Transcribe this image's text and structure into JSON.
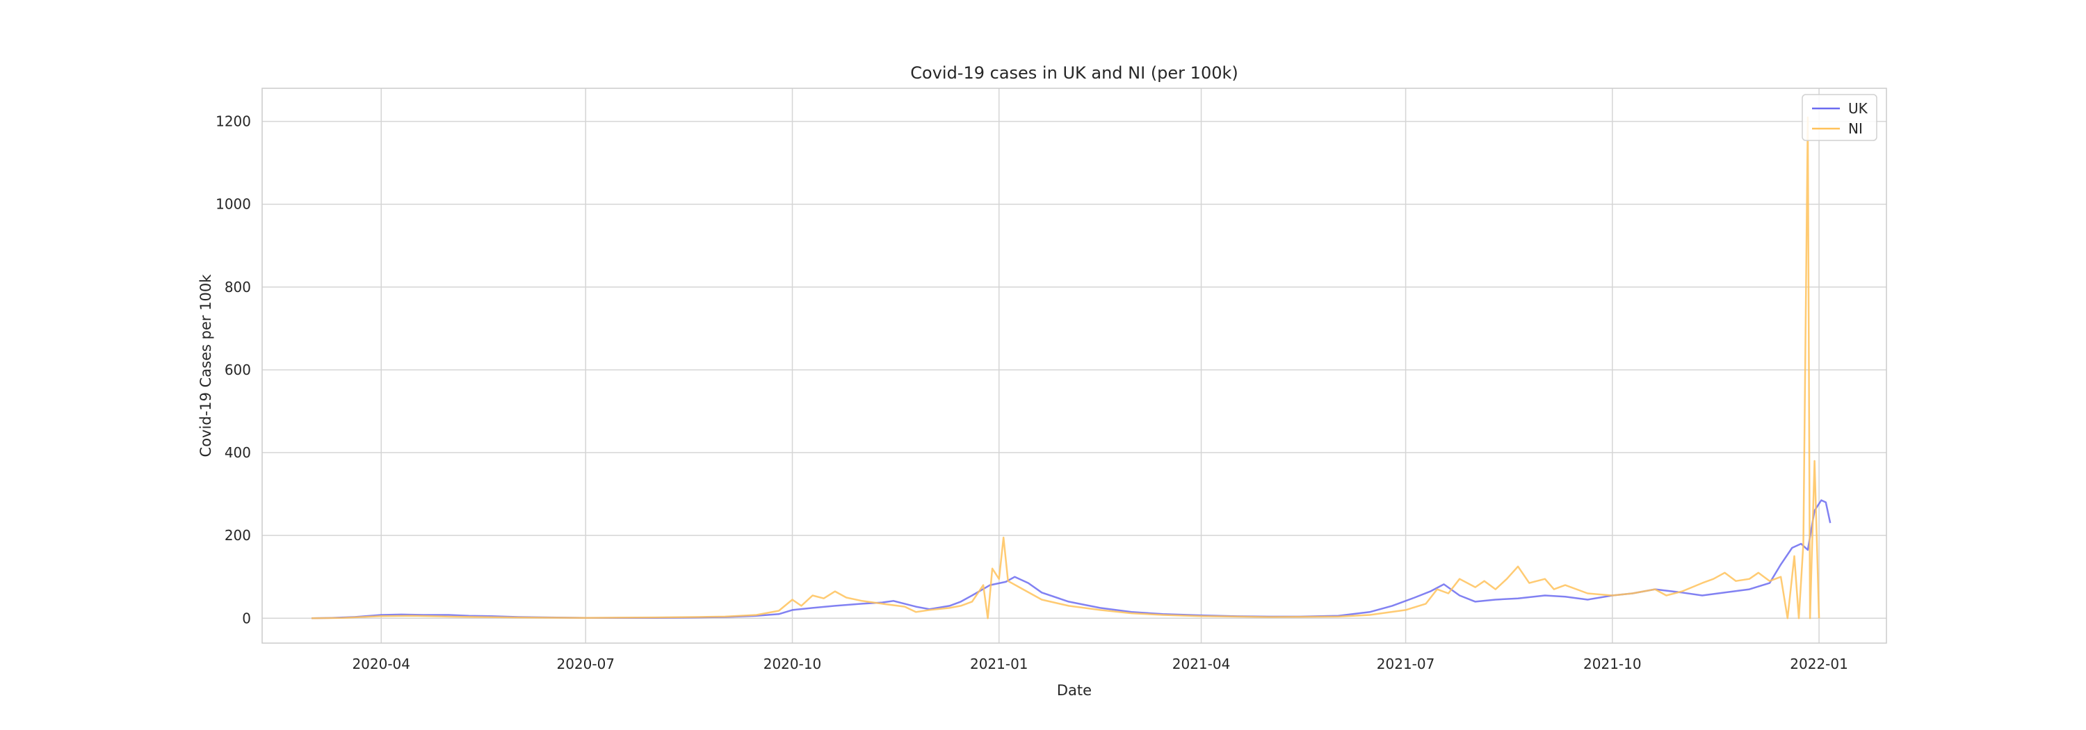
{
  "chart_data": {
    "type": "line",
    "title": "Covid-19 cases in UK and NI (per 100k)",
    "xlabel": "Date",
    "ylabel": "Covid-19 Cases per 100k",
    "xlim": [
      "2020-02-08",
      "2022-01-31"
    ],
    "ylim": [
      -60,
      1280
    ],
    "x_ticks": [
      "2020-04",
      "2020-07",
      "2020-10",
      "2021-01",
      "2021-04",
      "2021-07",
      "2021-10",
      "2022-01"
    ],
    "y_ticks": [
      0,
      200,
      400,
      600,
      800,
      1000,
      1200
    ],
    "grid": true,
    "legend_position": "top-right",
    "series": [
      {
        "name": "UK",
        "color": "#6b6bf0",
        "points": [
          [
            "2020-03-01",
            0
          ],
          [
            "2020-03-10",
            1
          ],
          [
            "2020-03-20",
            3
          ],
          [
            "2020-04-01",
            8
          ],
          [
            "2020-04-10",
            9
          ],
          [
            "2020-04-20",
            8
          ],
          [
            "2020-05-01",
            8
          ],
          [
            "2020-05-10",
            6
          ],
          [
            "2020-05-20",
            5
          ],
          [
            "2020-06-01",
            3
          ],
          [
            "2020-06-15",
            2
          ],
          [
            "2020-07-01",
            1
          ],
          [
            "2020-08-01",
            1
          ],
          [
            "2020-08-20",
            2
          ],
          [
            "2020-09-01",
            3
          ],
          [
            "2020-09-15",
            6
          ],
          [
            "2020-09-25",
            10
          ],
          [
            "2020-10-01",
            20
          ],
          [
            "2020-10-10",
            25
          ],
          [
            "2020-10-20",
            30
          ],
          [
            "2020-11-01",
            35
          ],
          [
            "2020-11-10",
            38
          ],
          [
            "2020-11-15",
            42
          ],
          [
            "2020-11-25",
            28
          ],
          [
            "2020-12-01",
            22
          ],
          [
            "2020-12-10",
            30
          ],
          [
            "2020-12-15",
            40
          ],
          [
            "2020-12-20",
            55
          ],
          [
            "2020-12-28",
            80
          ],
          [
            "2021-01-04",
            88
          ],
          [
            "2021-01-08",
            100
          ],
          [
            "2021-01-14",
            85
          ],
          [
            "2021-01-20",
            62
          ],
          [
            "2021-02-01",
            40
          ],
          [
            "2021-02-15",
            25
          ],
          [
            "2021-03-01",
            15
          ],
          [
            "2021-03-15",
            10
          ],
          [
            "2021-04-01",
            7
          ],
          [
            "2021-04-15",
            5
          ],
          [
            "2021-05-01",
            4
          ],
          [
            "2021-05-15",
            4
          ],
          [
            "2021-06-01",
            6
          ],
          [
            "2021-06-15",
            15
          ],
          [
            "2021-06-25",
            30
          ],
          [
            "2021-07-05",
            50
          ],
          [
            "2021-07-12",
            65
          ],
          [
            "2021-07-18",
            82
          ],
          [
            "2021-07-25",
            55
          ],
          [
            "2021-08-01",
            40
          ],
          [
            "2021-08-10",
            45
          ],
          [
            "2021-08-20",
            48
          ],
          [
            "2021-09-01",
            55
          ],
          [
            "2021-09-10",
            52
          ],
          [
            "2021-09-20",
            45
          ],
          [
            "2021-10-01",
            55
          ],
          [
            "2021-10-10",
            60
          ],
          [
            "2021-10-20",
            70
          ],
          [
            "2021-11-01",
            62
          ],
          [
            "2021-11-10",
            55
          ],
          [
            "2021-11-20",
            62
          ],
          [
            "2021-12-01",
            70
          ],
          [
            "2021-12-10",
            85
          ],
          [
            "2021-12-15",
            130
          ],
          [
            "2021-12-20",
            170
          ],
          [
            "2021-12-24",
            180
          ],
          [
            "2021-12-27",
            165
          ],
          [
            "2021-12-30",
            260
          ],
          [
            "2022-01-02",
            285
          ],
          [
            "2022-01-04",
            280
          ],
          [
            "2022-01-06",
            230
          ]
        ]
      },
      {
        "name": "NI",
        "color": "#ffc25a",
        "points": [
          [
            "2020-03-01",
            0
          ],
          [
            "2020-03-15",
            1
          ],
          [
            "2020-04-01",
            5
          ],
          [
            "2020-04-15",
            6
          ],
          [
            "2020-05-01",
            4
          ],
          [
            "2020-05-15",
            3
          ],
          [
            "2020-06-01",
            2
          ],
          [
            "2020-07-01",
            1
          ],
          [
            "2020-08-01",
            2
          ],
          [
            "2020-08-20",
            3
          ],
          [
            "2020-09-01",
            4
          ],
          [
            "2020-09-15",
            8
          ],
          [
            "2020-09-25",
            18
          ],
          [
            "2020-10-01",
            45
          ],
          [
            "2020-10-05",
            30
          ],
          [
            "2020-10-10",
            55
          ],
          [
            "2020-10-15",
            48
          ],
          [
            "2020-10-20",
            65
          ],
          [
            "2020-10-25",
            50
          ],
          [
            "2020-11-01",
            42
          ],
          [
            "2020-11-10",
            35
          ],
          [
            "2020-11-20",
            28
          ],
          [
            "2020-11-25",
            15
          ],
          [
            "2020-12-01",
            20
          ],
          [
            "2020-12-10",
            25
          ],
          [
            "2020-12-15",
            30
          ],
          [
            "2020-12-20",
            40
          ],
          [
            "2020-12-25",
            80
          ],
          [
            "2020-12-27",
            0
          ],
          [
            "2020-12-29",
            120
          ],
          [
            "2021-01-01",
            95
          ],
          [
            "2021-01-03",
            195
          ],
          [
            "2021-01-05",
            90
          ],
          [
            "2021-01-10",
            75
          ],
          [
            "2021-01-20",
            45
          ],
          [
            "2021-02-01",
            30
          ],
          [
            "2021-02-15",
            20
          ],
          [
            "2021-03-01",
            12
          ],
          [
            "2021-03-15",
            8
          ],
          [
            "2021-04-01",
            5
          ],
          [
            "2021-05-01",
            3
          ],
          [
            "2021-06-01",
            4
          ],
          [
            "2021-06-15",
            8
          ],
          [
            "2021-07-01",
            20
          ],
          [
            "2021-07-10",
            35
          ],
          [
            "2021-07-15",
            70
          ],
          [
            "2021-07-20",
            60
          ],
          [
            "2021-07-25",
            95
          ],
          [
            "2021-08-01",
            75
          ],
          [
            "2021-08-05",
            90
          ],
          [
            "2021-08-10",
            70
          ],
          [
            "2021-08-15",
            95
          ],
          [
            "2021-08-20",
            125
          ],
          [
            "2021-08-25",
            85
          ],
          [
            "2021-09-01",
            95
          ],
          [
            "2021-09-05",
            70
          ],
          [
            "2021-09-10",
            80
          ],
          [
            "2021-09-20",
            60
          ],
          [
            "2021-10-01",
            55
          ],
          [
            "2021-10-10",
            60
          ],
          [
            "2021-10-20",
            70
          ],
          [
            "2021-10-25",
            55
          ],
          [
            "2021-11-01",
            65
          ],
          [
            "2021-11-10",
            85
          ],
          [
            "2021-11-15",
            95
          ],
          [
            "2021-11-20",
            110
          ],
          [
            "2021-11-25",
            90
          ],
          [
            "2021-12-01",
            95
          ],
          [
            "2021-12-05",
            110
          ],
          [
            "2021-12-10",
            90
          ],
          [
            "2021-12-15",
            100
          ],
          [
            "2021-12-18",
            0
          ],
          [
            "2021-12-21",
            150
          ],
          [
            "2021-12-23",
            0
          ],
          [
            "2021-12-25",
            180
          ],
          [
            "2021-12-27",
            1210
          ],
          [
            "2021-12-28",
            0
          ],
          [
            "2021-12-30",
            380
          ],
          [
            "2022-01-01",
            0
          ]
        ]
      }
    ]
  }
}
